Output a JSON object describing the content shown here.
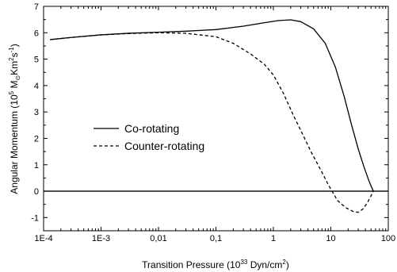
{
  "chart_data": {
    "type": "line",
    "xscale": "log",
    "xlim": [
      0.0001,
      100
    ],
    "ylim": [
      -1.5,
      7
    ],
    "grid": false,
    "legend_position": "center-left",
    "xlabel": {
      "main": "Transition Pressure (10",
      "sup": "33",
      "tail": " Dyn/cm",
      "sup2": "2",
      "end": ")"
    },
    "ylabel": {
      "main": "Angular Momentum (10",
      "sup": "5",
      "mid": " M",
      "sub": "⊙",
      "mid2": "Km",
      "sup2": "2",
      "mid3": "s",
      "sup3": "-1",
      "end": ")"
    },
    "x_ticks": [
      {
        "value": 0.0001,
        "label": "1E-4"
      },
      {
        "value": 0.001,
        "label": "1E-3"
      },
      {
        "value": 0.01,
        "label": "0,01"
      },
      {
        "value": 0.1,
        "label": "0,1"
      },
      {
        "value": 1,
        "label": "1"
      },
      {
        "value": 10,
        "label": "10"
      },
      {
        "value": 100,
        "label": "100"
      }
    ],
    "y_ticks": [
      {
        "value": -1,
        "label": "-1"
      },
      {
        "value": 0,
        "label": "0"
      },
      {
        "value": 1,
        "label": "1"
      },
      {
        "value": 2,
        "label": "2"
      },
      {
        "value": 3,
        "label": "3"
      },
      {
        "value": 4,
        "label": "4"
      },
      {
        "value": 5,
        "label": "5"
      },
      {
        "value": 6,
        "label": "6"
      },
      {
        "value": 7,
        "label": "7"
      }
    ],
    "reference_line": {
      "y": 0
    },
    "series": [
      {
        "name": "Co-rotating",
        "style": "solid",
        "color": "#000000",
        "points": [
          [
            0.00013,
            5.74
          ],
          [
            0.0003,
            5.82
          ],
          [
            0.001,
            5.92
          ],
          [
            0.003,
            5.98
          ],
          [
            0.01,
            6.02
          ],
          [
            0.03,
            6.06
          ],
          [
            0.1,
            6.12
          ],
          [
            0.3,
            6.25
          ],
          [
            0.7,
            6.38
          ],
          [
            1.2,
            6.46
          ],
          [
            2.0,
            6.49
          ],
          [
            3.0,
            6.42
          ],
          [
            5.0,
            6.15
          ],
          [
            8.0,
            5.6
          ],
          [
            12.0,
            4.7
          ],
          [
            17.0,
            3.6
          ],
          [
            23.0,
            2.5
          ],
          [
            30.0,
            1.6
          ],
          [
            38.0,
            0.9
          ],
          [
            45.0,
            0.45
          ],
          [
            50.0,
            0.2
          ],
          [
            55.0,
            0.0
          ]
        ]
      },
      {
        "name": "Counter-rotating",
        "style": "dashed",
        "color": "#000000",
        "points": [
          [
            0.00013,
            5.74
          ],
          [
            0.0003,
            5.82
          ],
          [
            0.001,
            5.92
          ],
          [
            0.003,
            5.97
          ],
          [
            0.01,
            6.0
          ],
          [
            0.03,
            5.98
          ],
          [
            0.1,
            5.85
          ],
          [
            0.2,
            5.6
          ],
          [
            0.4,
            5.2
          ],
          [
            0.7,
            4.8
          ],
          [
            1.0,
            4.4
          ],
          [
            1.5,
            3.7
          ],
          [
            2.2,
            2.9
          ],
          [
            3.0,
            2.3
          ],
          [
            4.5,
            1.5
          ],
          [
            6.5,
            0.85
          ],
          [
            9.0,
            0.25
          ],
          [
            13.0,
            -0.35
          ],
          [
            18.0,
            -0.62
          ],
          [
            25.0,
            -0.78
          ],
          [
            30.0,
            -0.8
          ],
          [
            36.0,
            -0.68
          ],
          [
            43.0,
            -0.45
          ],
          [
            50.0,
            -0.18
          ],
          [
            55.0,
            0.0
          ]
        ]
      }
    ]
  }
}
